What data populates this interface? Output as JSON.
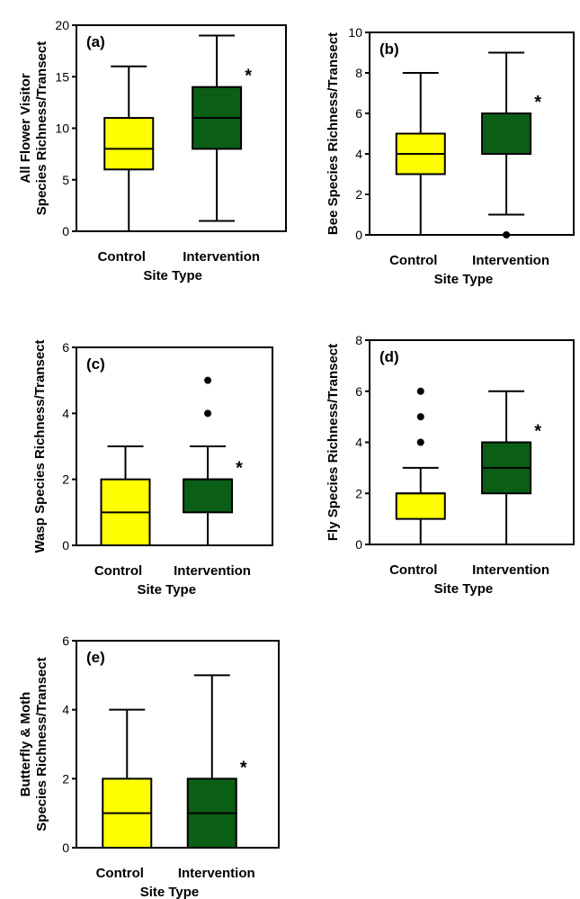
{
  "figure": {
    "categories": [
      "Control",
      "Intervention"
    ],
    "xlabel": "Site Type",
    "colors": {
      "Control": "#ffff00",
      "Intervention": "#0b5e16",
      "stroke": "#000000"
    }
  },
  "chart_data": [
    {
      "type": "box",
      "panel": "(a)",
      "ylabel": [
        "All Flower Visitor",
        "Species Richness/Transect"
      ],
      "xlabel": "Site Type",
      "categories": [
        "Control",
        "Intervention"
      ],
      "ylim": [
        0,
        20
      ],
      "yticks": [
        0,
        5,
        10,
        15,
        20
      ],
      "boxes": [
        {
          "category": "Control",
          "min": 0,
          "q1": 6,
          "median": 8,
          "q3": 11,
          "max": 16,
          "outliers": []
        },
        {
          "category": "Intervention",
          "min": 1,
          "q1": 8,
          "median": 11,
          "q3": 14,
          "max": 19,
          "outliers": []
        }
      ],
      "significance": "*"
    },
    {
      "type": "box",
      "panel": "(b)",
      "ylabel": [
        "Bee Species Richness/Transect"
      ],
      "xlabel": "Site Type",
      "categories": [
        "Control",
        "Intervention"
      ],
      "ylim": [
        0,
        10
      ],
      "yticks": [
        0,
        2,
        4,
        6,
        8,
        10
      ],
      "boxes": [
        {
          "category": "Control",
          "min": 0,
          "q1": 3,
          "median": 4,
          "q3": 5,
          "max": 8,
          "outliers": []
        },
        {
          "category": "Intervention",
          "min": 1,
          "q1": 4,
          "median": 4,
          "q3": 6,
          "max": 9,
          "outliers": [
            0
          ]
        }
      ],
      "significance": "*"
    },
    {
      "type": "box",
      "panel": "(c)",
      "ylabel": [
        "Wasp Species Richness/Transect"
      ],
      "xlabel": "Site Type",
      "categories": [
        "Control",
        "Intervention"
      ],
      "ylim": [
        0,
        6
      ],
      "yticks": [
        0,
        2,
        4,
        6
      ],
      "boxes": [
        {
          "category": "Control",
          "min": 0,
          "q1": 0,
          "median": 1,
          "q3": 2,
          "max": 3,
          "outliers": []
        },
        {
          "category": "Intervention",
          "min": 0,
          "q1": 1,
          "median": 2,
          "q3": 2,
          "max": 3,
          "outliers": [
            4,
            5
          ]
        }
      ],
      "significance": "*"
    },
    {
      "type": "box",
      "panel": "(d)",
      "ylabel": [
        "Fly Species Richness/Transect"
      ],
      "xlabel": "Site Type",
      "categories": [
        "Control",
        "Intervention"
      ],
      "ylim": [
        0,
        8
      ],
      "yticks": [
        0,
        2,
        4,
        6,
        8
      ],
      "boxes": [
        {
          "category": "Control",
          "min": 0,
          "q1": 1,
          "median": 2,
          "q3": 2,
          "max": 3,
          "outliers": [
            4,
            5,
            6
          ]
        },
        {
          "category": "Intervention",
          "min": 0,
          "q1": 2,
          "median": 3,
          "q3": 4,
          "max": 6,
          "outliers": []
        }
      ],
      "significance": "*"
    },
    {
      "type": "box",
      "panel": "(e)",
      "ylabel": [
        "Butterfly & Moth",
        "Species Richness/Transect"
      ],
      "xlabel": "Site Type",
      "categories": [
        "Control",
        "Intervention"
      ],
      "ylim": [
        0,
        6
      ],
      "yticks": [
        0,
        2,
        4,
        6
      ],
      "boxes": [
        {
          "category": "Control",
          "min": 0,
          "q1": 0,
          "median": 1,
          "q3": 2,
          "max": 4,
          "outliers": []
        },
        {
          "category": "Intervention",
          "min": 0,
          "q1": 0,
          "median": 1,
          "q3": 2,
          "max": 5,
          "outliers": []
        }
      ],
      "significance": "*"
    }
  ]
}
